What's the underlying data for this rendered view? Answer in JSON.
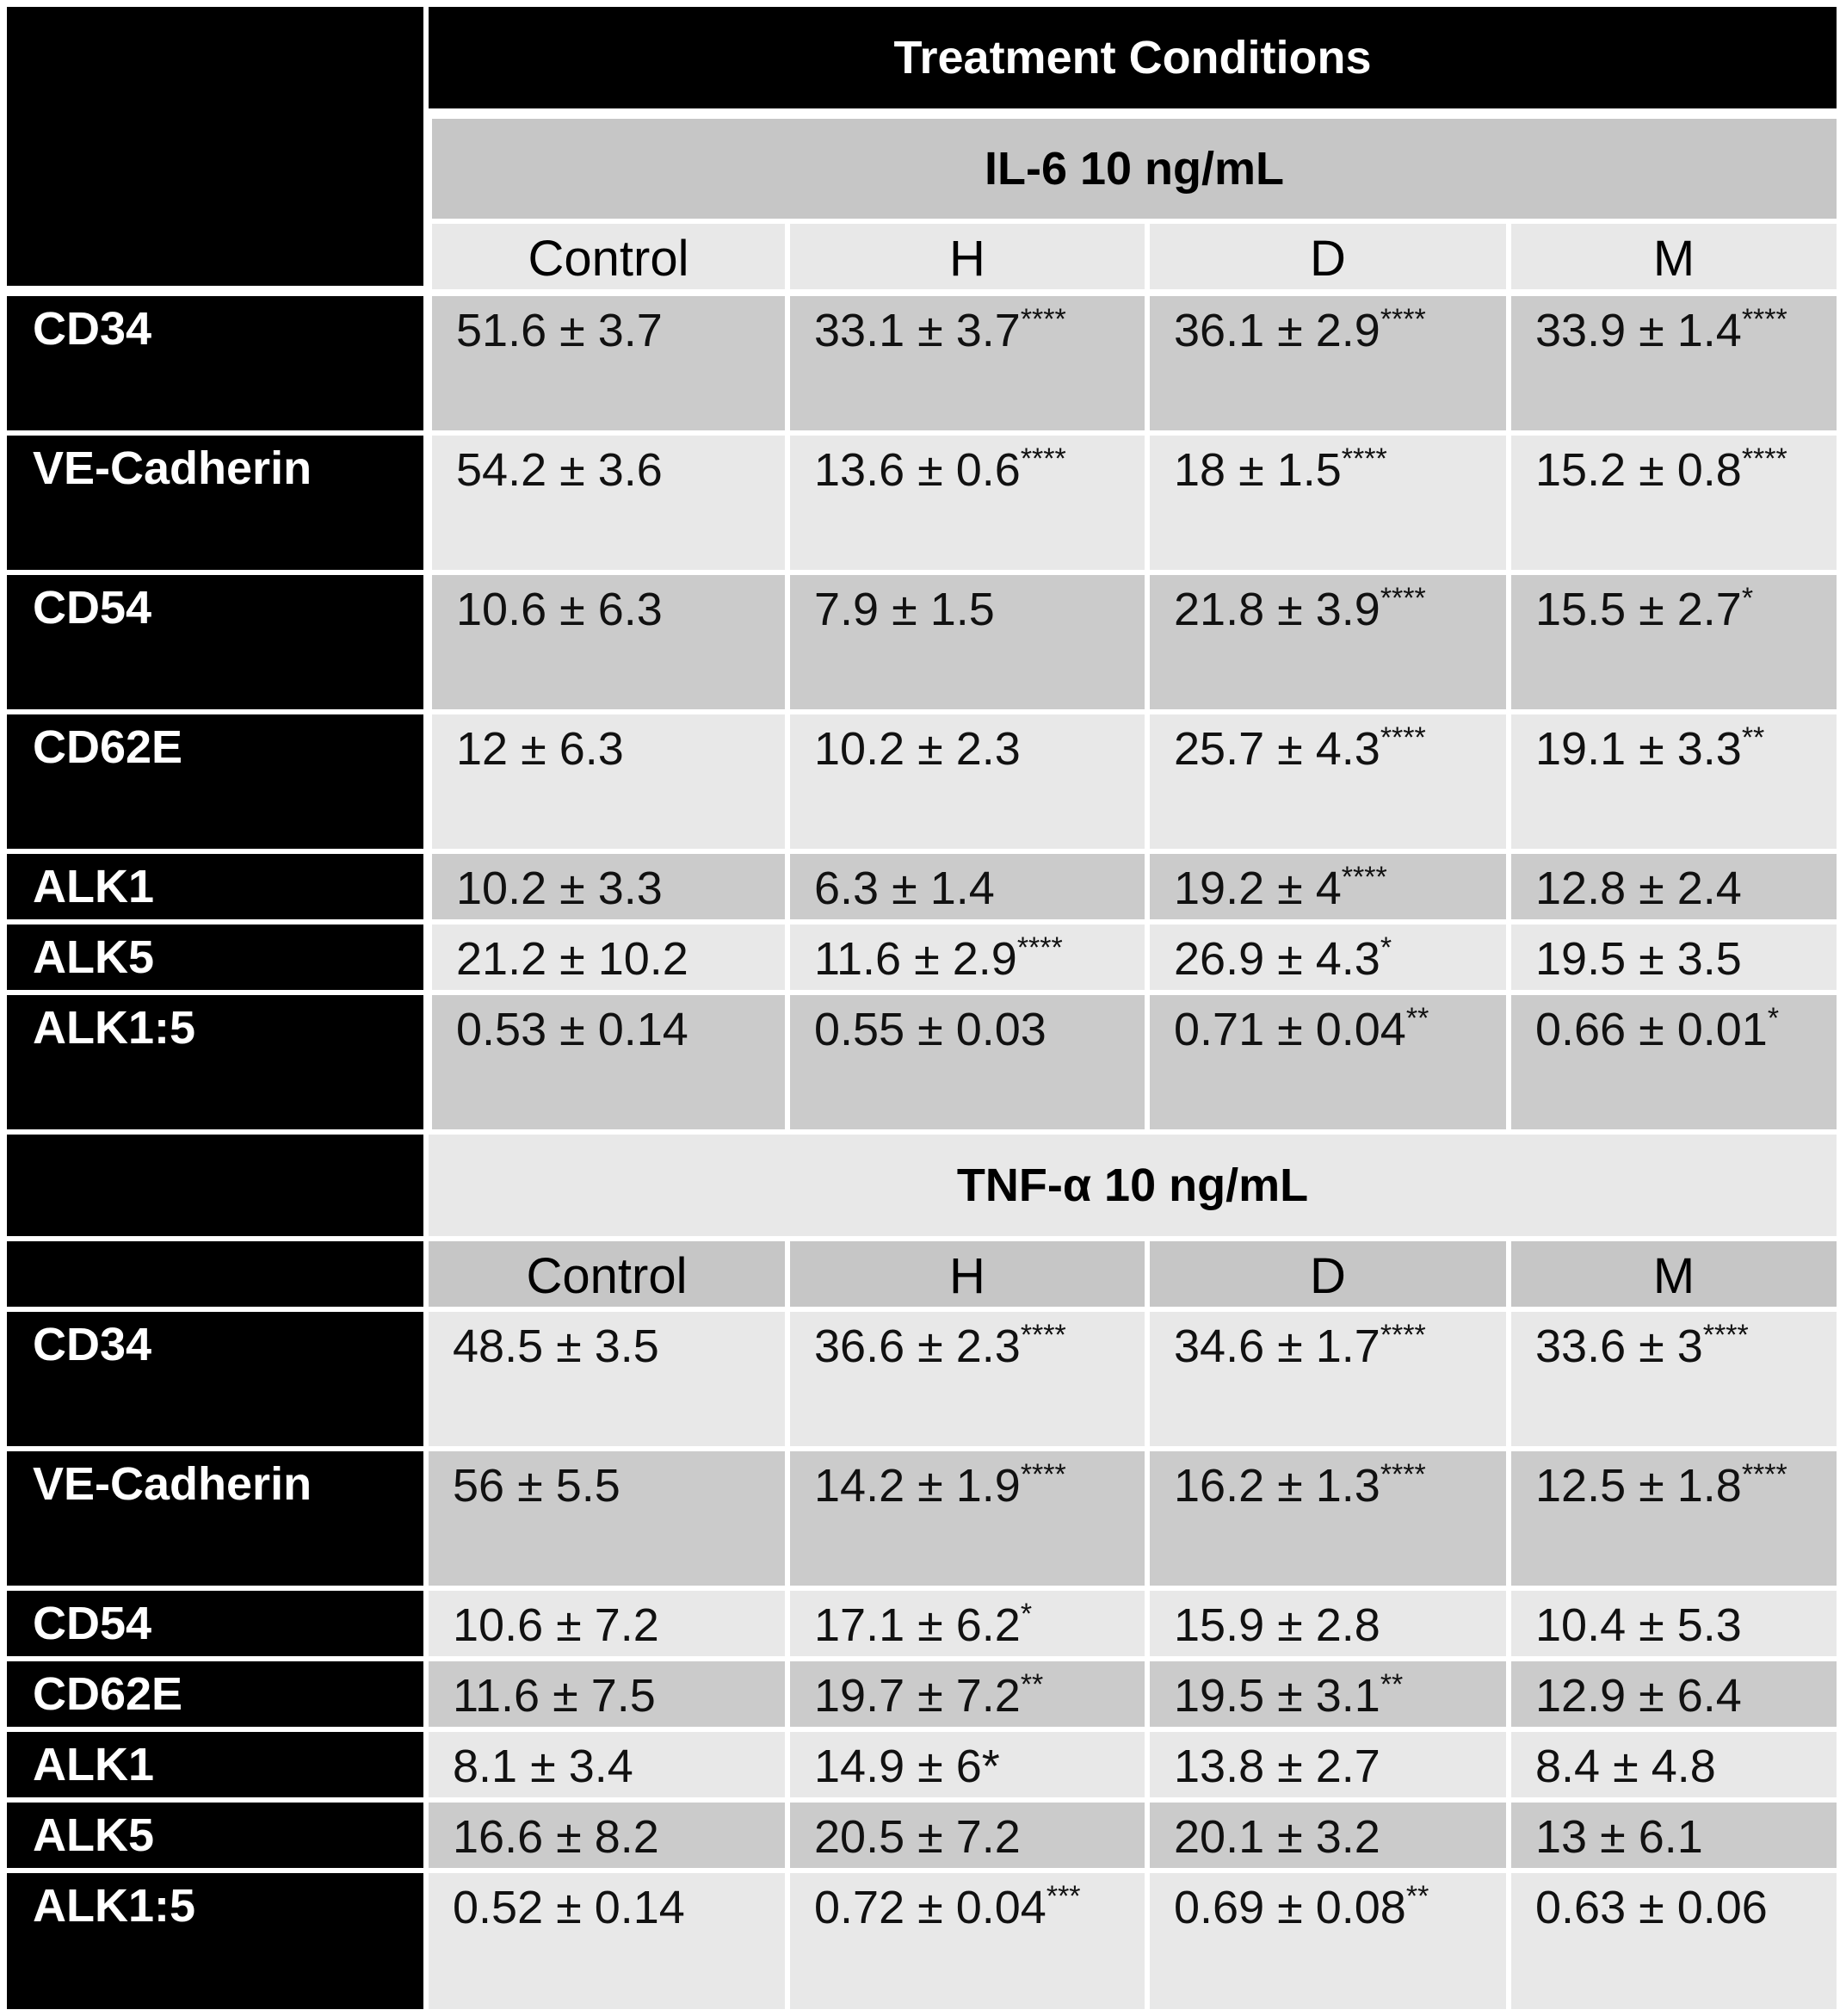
{
  "header": {
    "title": "Treatment Conditions"
  },
  "sections": [
    {
      "title": "IL-6 10 ng/mL",
      "columns": [
        "Control",
        "H",
        "D",
        "M"
      ],
      "rows": [
        {
          "label": "CD34",
          "cells": [
            {
              "value": "51.6 ± 3.7",
              "sig": ""
            },
            {
              "value": "33.1 ± 3.7",
              "sig": "****"
            },
            {
              "value": "36.1 ± 2.9",
              "sig": "****"
            },
            {
              "value": "33.9 ± 1.4",
              "sig": "****"
            }
          ]
        },
        {
          "label": "VE-Cadherin",
          "cells": [
            {
              "value": "54.2 ± 3.6",
              "sig": ""
            },
            {
              "value": "13.6 ± 0.6",
              "sig": "****"
            },
            {
              "value": "18 ± 1.5",
              "sig": "****"
            },
            {
              "value": "15.2 ± 0.8",
              "sig": "****"
            }
          ]
        },
        {
          "label": "CD54",
          "cells": [
            {
              "value": "10.6 ± 6.3",
              "sig": ""
            },
            {
              "value": "7.9 ± 1.5",
              "sig": ""
            },
            {
              "value": "21.8 ± 3.9",
              "sig": "****"
            },
            {
              "value": "15.5 ± 2.7",
              "sig": "*"
            }
          ]
        },
        {
          "label": "CD62E",
          "cells": [
            {
              "value": "12 ± 6.3",
              "sig": ""
            },
            {
              "value": "10.2 ± 2.3",
              "sig": ""
            },
            {
              "value": "25.7 ± 4.3",
              "sig": "****"
            },
            {
              "value": "19.1 ± 3.3",
              "sig": "**"
            }
          ]
        },
        {
          "label": "ALK1",
          "cells": [
            {
              "value": "10.2 ± 3.3",
              "sig": ""
            },
            {
              "value": "6.3 ± 1.4",
              "sig": ""
            },
            {
              "value": "19.2 ± 4",
              "sig": "****"
            },
            {
              "value": "12.8 ± 2.4",
              "sig": ""
            }
          ]
        },
        {
          "label": "ALK5",
          "cells": [
            {
              "value": "21.2 ± 10.2",
              "sig": ""
            },
            {
              "value": "11.6 ± 2.9",
              "sig": "****"
            },
            {
              "value": "26.9 ± 4.3",
              "sig": "*"
            },
            {
              "value": "19.5 ± 3.5",
              "sig": ""
            }
          ]
        },
        {
          "label": "ALK1:5",
          "cells": [
            {
              "value": "0.53 ± 0.14",
              "sig": ""
            },
            {
              "value": "0.55 ± 0.03",
              "sig": ""
            },
            {
              "value": "0.71 ± 0.04",
              "sig": "**"
            },
            {
              "value": "0.66 ± 0.01",
              "sig": "*"
            }
          ]
        }
      ]
    },
    {
      "title": "TNF-α 10 ng/mL",
      "columns": [
        "Control",
        "H",
        "D",
        "M"
      ],
      "rows": [
        {
          "label": "CD34",
          "cells": [
            {
              "value": "48.5 ± 3.5",
              "sig": ""
            },
            {
              "value": "36.6 ± 2.3",
              "sig": "****"
            },
            {
              "value": "34.6 ± 1.7",
              "sig": "****"
            },
            {
              "value": "33.6 ± 3",
              "sig": "****"
            }
          ]
        },
        {
          "label": "VE-Cadherin",
          "cells": [
            {
              "value": "56 ± 5.5",
              "sig": ""
            },
            {
              "value": "14.2 ± 1.9",
              "sig": "****"
            },
            {
              "value": "16.2 ± 1.3",
              "sig": "****"
            },
            {
              "value": "12.5 ± 1.8",
              "sig": "****"
            }
          ]
        },
        {
          "label": "CD54",
          "cells": [
            {
              "value": "10.6 ± 7.2",
              "sig": ""
            },
            {
              "value": "17.1 ± 6.2",
              "sig": "*"
            },
            {
              "value": "15.9 ± 2.8",
              "sig": ""
            },
            {
              "value": "10.4 ± 5.3",
              "sig": ""
            }
          ]
        },
        {
          "label": "CD62E",
          "cells": [
            {
              "value": "11.6 ± 7.5",
              "sig": ""
            },
            {
              "value": "19.7 ± 7.2",
              "sig": "**"
            },
            {
              "value": "19.5 ± 3.1",
              "sig": "**"
            },
            {
              "value": "12.9 ± 6.4",
              "sig": ""
            }
          ]
        },
        {
          "label": "ALK1",
          "cells": [
            {
              "value": "8.1 ± 3.4",
              "sig": ""
            },
            {
              "value": "14.9 ± 6*",
              "sig": ""
            },
            {
              "value": "13.8 ± 2.7",
              "sig": ""
            },
            {
              "value": "8.4 ± 4.8",
              "sig": ""
            }
          ]
        },
        {
          "label": "ALK5",
          "cells": [
            {
              "value": "16.6 ± 8.2",
              "sig": ""
            },
            {
              "value": "20.5 ± 7.2",
              "sig": ""
            },
            {
              "value": "20.1 ± 3.2",
              "sig": ""
            },
            {
              "value": "13 ± 6.1",
              "sig": ""
            }
          ]
        },
        {
          "label": "ALK1:5",
          "cells": [
            {
              "value": "0.52 ± 0.14",
              "sig": ""
            },
            {
              "value": "0.72 ± 0.04",
              "sig": "***"
            },
            {
              "value": "0.69 ± 0.08",
              "sig": "**"
            },
            {
              "value": "0.63 ± 0.06",
              "sig": ""
            }
          ]
        }
      ]
    }
  ]
}
